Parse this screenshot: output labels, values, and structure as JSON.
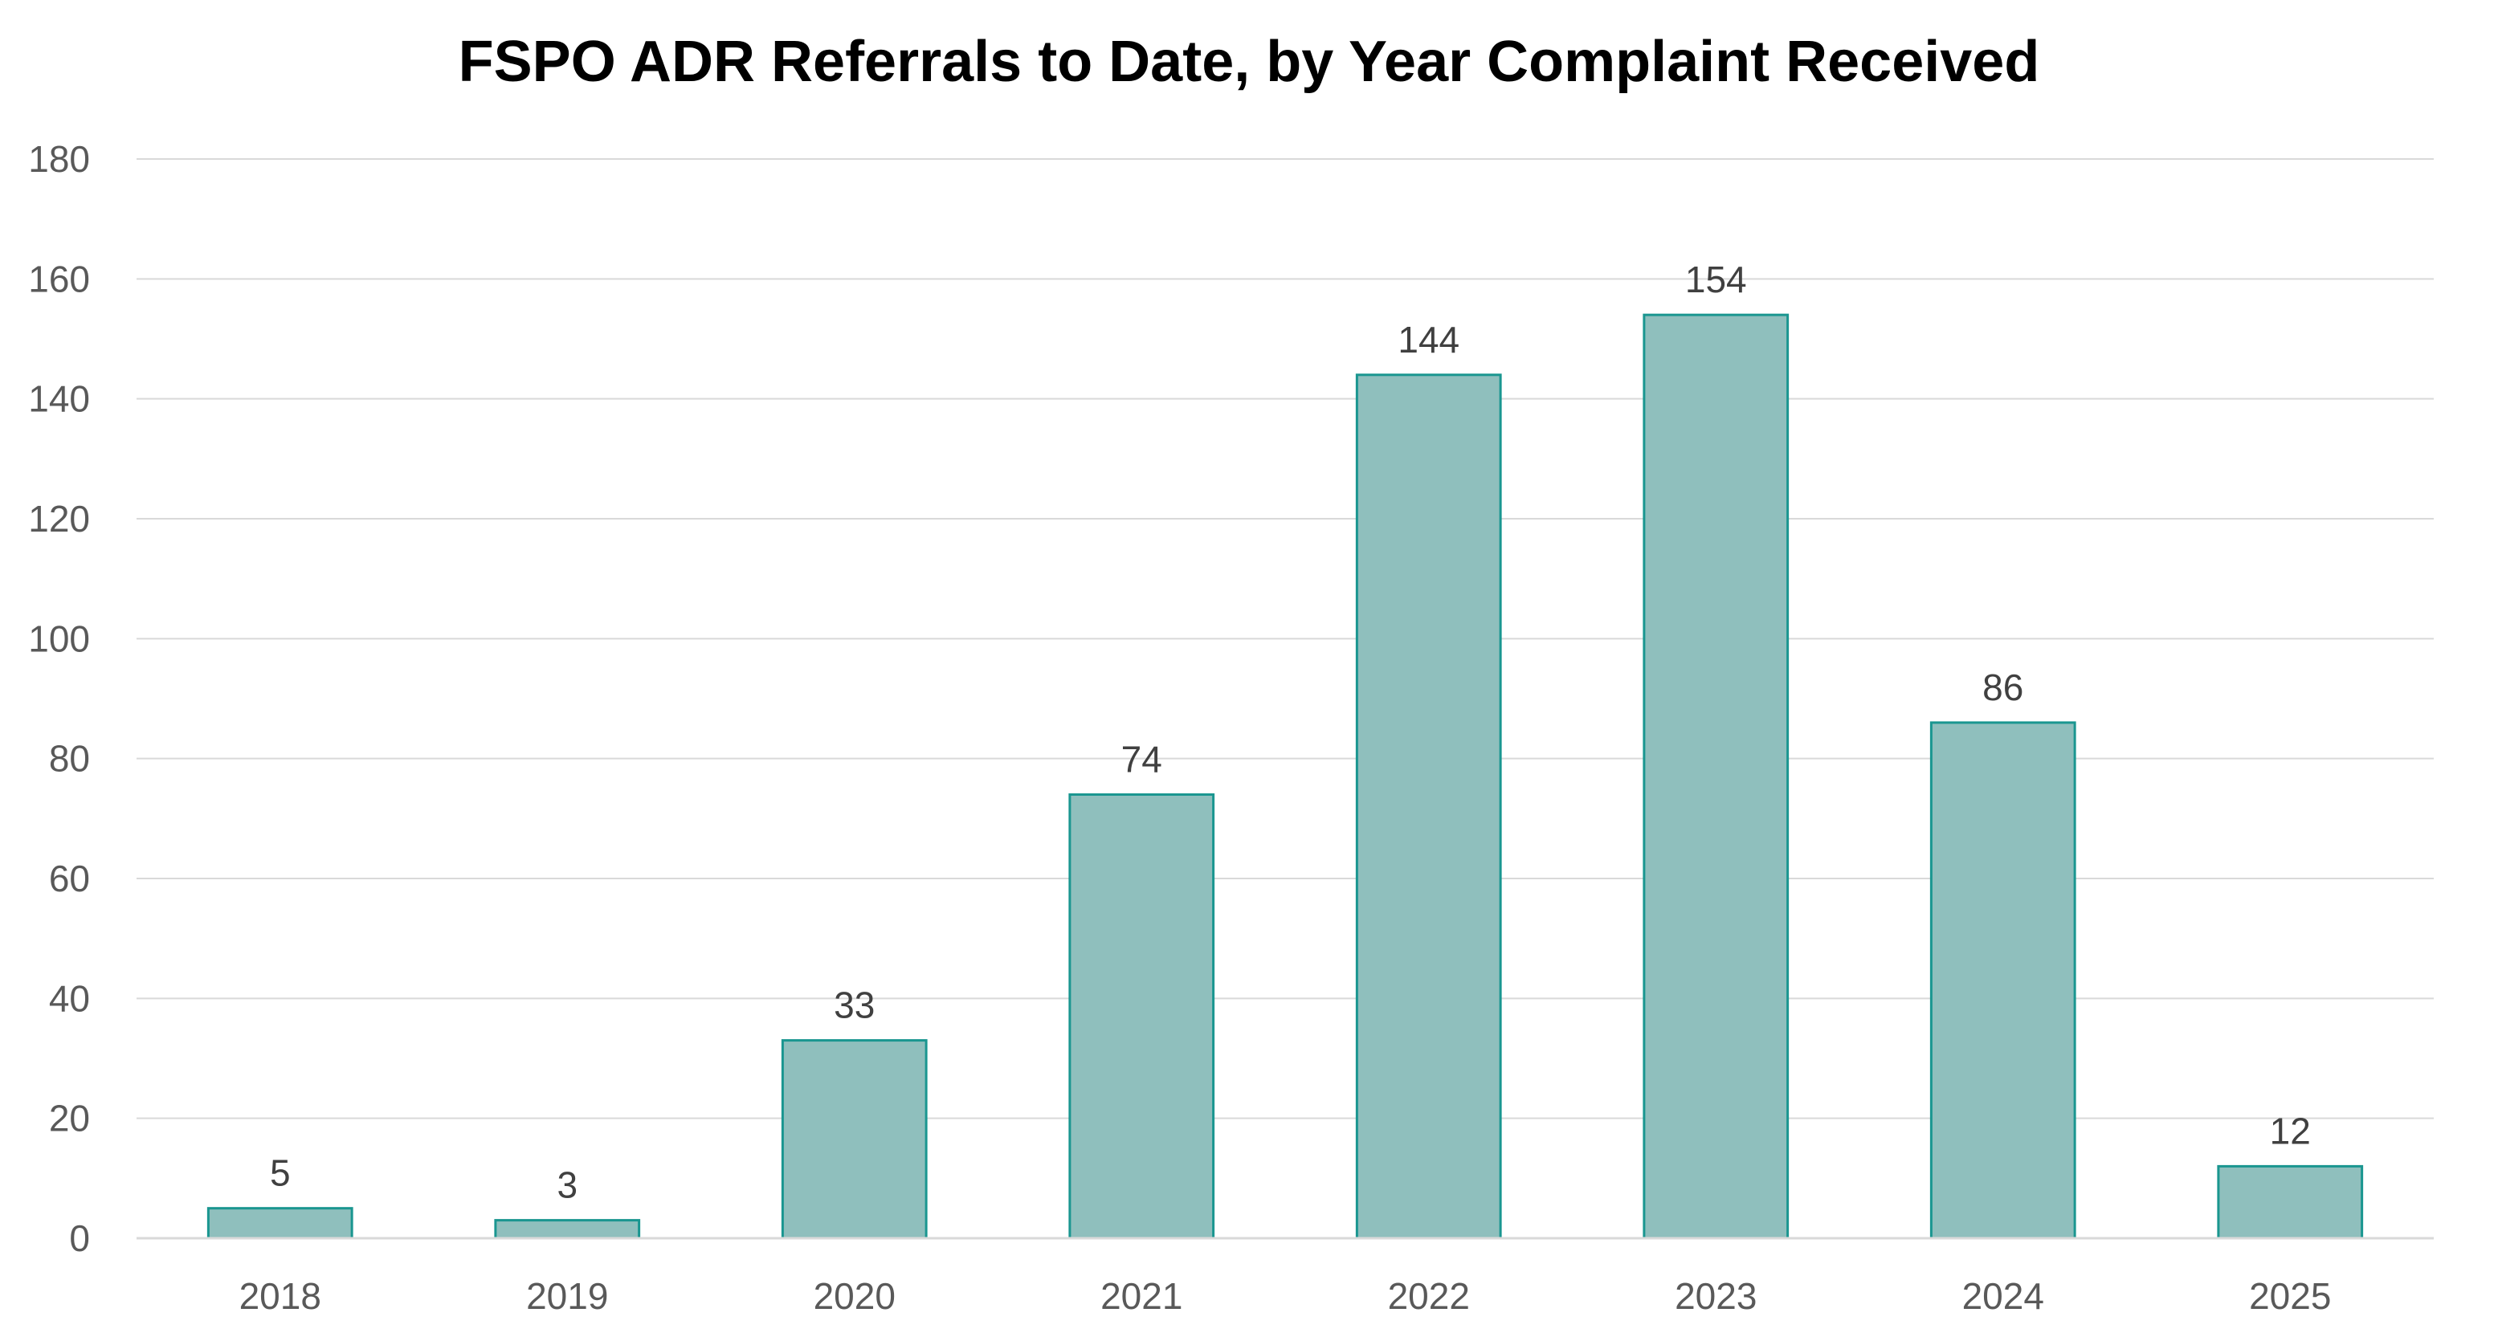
{
  "chart_data": {
    "type": "bar",
    "title": "FSPO ADR Referrals to Date, by Year Complaint Received",
    "categories": [
      "2018",
      "2019",
      "2020",
      "2021",
      "2022",
      "2023",
      "2024",
      "2025"
    ],
    "values": [
      5,
      3,
      33,
      74,
      144,
      154,
      86,
      12
    ],
    "xlabel": "",
    "ylabel": "",
    "ylim": [
      0,
      180
    ],
    "yticks": [
      0,
      20,
      40,
      60,
      80,
      100,
      120,
      140,
      160,
      180
    ],
    "grid": true,
    "data_labels": true,
    "legend": "none",
    "bar_fill_color": "#8FBFBD",
    "bar_edge_color": "#1A9690",
    "gridline_color": "#D9D9D9"
  }
}
